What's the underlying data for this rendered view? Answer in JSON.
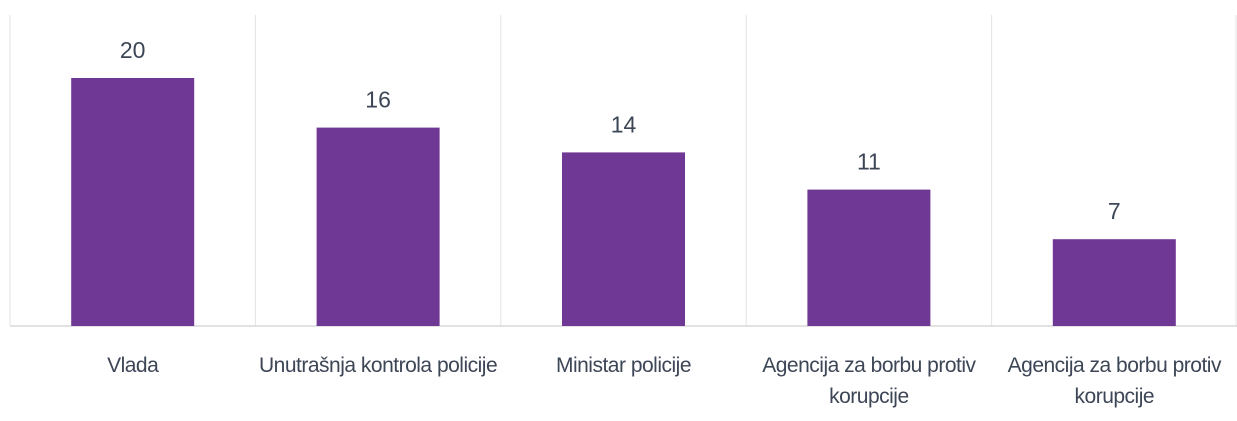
{
  "chart_data": {
    "type": "bar",
    "categories": [
      "Vlada",
      "Unutrašnja kontrola policije",
      "Ministar policije",
      "Agencija za borbu protiv korupcije",
      "Agencija za borbu protiv korupcije"
    ],
    "values": [
      20,
      16,
      14,
      11,
      7
    ],
    "color": "#6f3894"
  }
}
